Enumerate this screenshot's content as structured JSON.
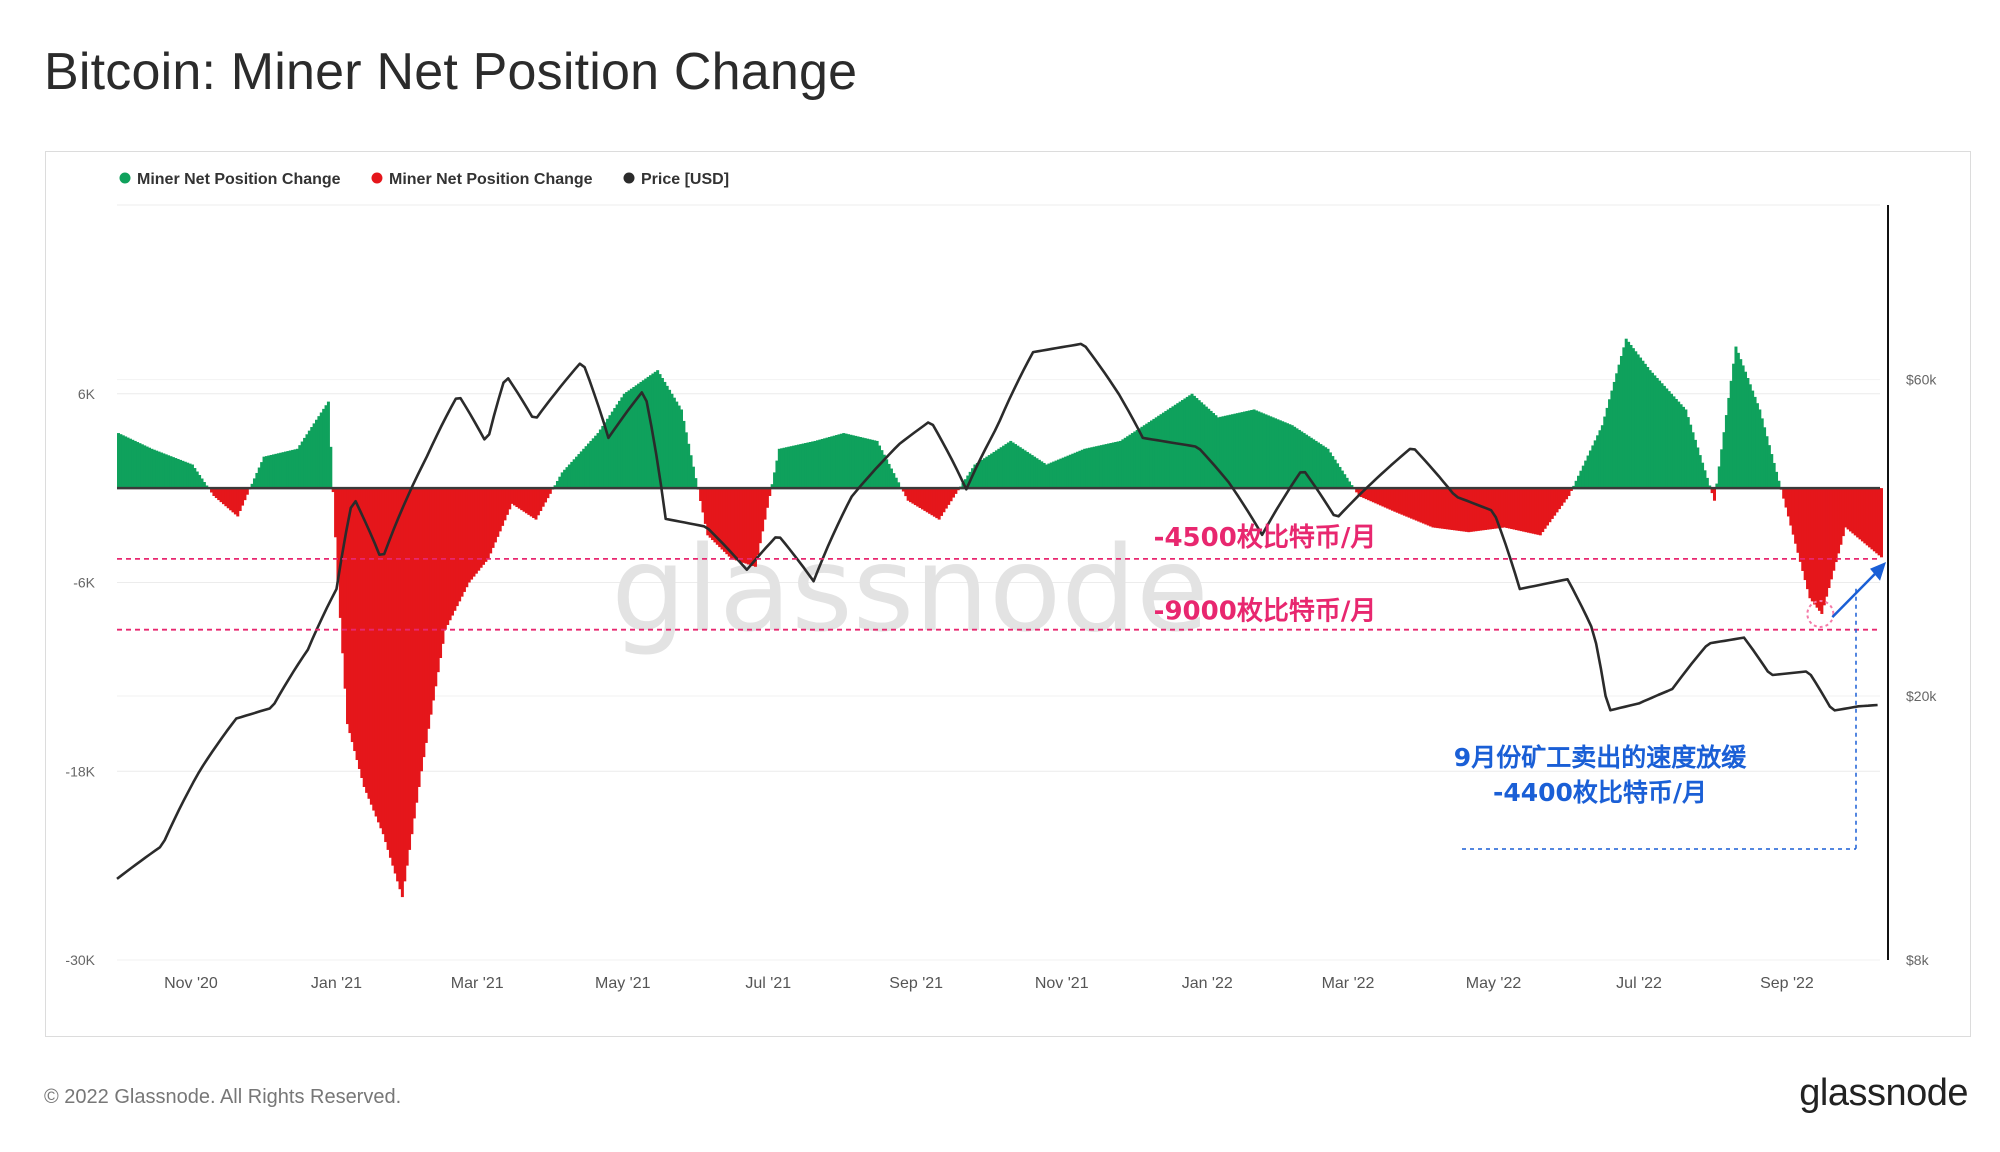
{
  "header": {
    "title": "Bitcoin: Miner Net Position Change"
  },
  "footer": {
    "copyright": "© 2022 Glassnode. All Rights Reserved.",
    "logo": "glassnode"
  },
  "watermark": "glassnode",
  "colors": {
    "positive": "#0fa15c",
    "negative": "#e5161b",
    "price": "#2b2b2b",
    "threshold": "#e8276f",
    "annotation": "#1a5fd6"
  },
  "chart_data": {
    "type": "bar",
    "legend": [
      {
        "label": "Miner Net Position Change",
        "color": "#0fa15c"
      },
      {
        "label": "Miner Net Position Change",
        "color": "#e5161b"
      },
      {
        "label": "Price [USD]",
        "color": "#2b2b2b"
      }
    ],
    "legend_position": "top-left",
    "x_ticks": [
      "Nov '20",
      "Jan '21",
      "Mar '21",
      "May '21",
      "Jul '21",
      "Sep '21",
      "Nov '21",
      "Jan '22",
      "Mar '22",
      "May '22",
      "Jul '22",
      "Sep '22"
    ],
    "y_left_ticks": [
      {
        "value": 6000,
        "label": "6K"
      },
      {
        "value": -6000,
        "label": "-6K"
      },
      {
        "value": -18000,
        "label": "-18K"
      },
      {
        "value": -30000,
        "label": "-30K"
      }
    ],
    "y_right_ticks": [
      {
        "value": 60000,
        "label": "$60k"
      },
      {
        "value": 20000,
        "label": "$20k"
      },
      {
        "value": 8000,
        "label": "$8k"
      }
    ],
    "y_left_range": [
      -30000,
      18000
    ],
    "y_right_scale": "log",
    "y_right_range": [
      8000,
      110000
    ],
    "grid": true,
    "date_range": [
      "2020-10-01",
      "2022-10-10"
    ],
    "net_position_series": [
      [
        "2020-10-01",
        3500
      ],
      [
        "2020-10-15",
        2500
      ],
      [
        "2020-11-01",
        1500
      ],
      [
        "2020-11-10",
        -500
      ],
      [
        "2020-11-20",
        -1800
      ],
      [
        "2020-12-01",
        2000
      ],
      [
        "2020-12-15",
        2500
      ],
      [
        "2020-12-28",
        5500
      ],
      [
        "2021-01-01",
        -6000
      ],
      [
        "2021-01-05",
        -15000
      ],
      [
        "2021-01-12",
        -19000
      ],
      [
        "2021-01-20",
        -22000
      ],
      [
        "2021-01-28",
        -26000
      ],
      [
        "2021-02-05",
        -18000
      ],
      [
        "2021-02-15",
        -9000
      ],
      [
        "2021-02-25",
        -6000
      ],
      [
        "2021-03-05",
        -4500
      ],
      [
        "2021-03-15",
        -1000
      ],
      [
        "2021-03-25",
        -2000
      ],
      [
        "2021-04-05",
        1000
      ],
      [
        "2021-04-20",
        3500
      ],
      [
        "2021-05-01",
        6000
      ],
      [
        "2021-05-15",
        7500
      ],
      [
        "2021-05-25",
        5000
      ],
      [
        "2021-06-05",
        -3000
      ],
      [
        "2021-06-15",
        -4500
      ],
      [
        "2021-06-25",
        -5000
      ],
      [
        "2021-07-05",
        2500
      ],
      [
        "2021-07-20",
        3000
      ],
      [
        "2021-08-01",
        3500
      ],
      [
        "2021-08-15",
        3000
      ],
      [
        "2021-08-28",
        -800
      ],
      [
        "2021-09-10",
        -2000
      ],
      [
        "2021-09-25",
        1500
      ],
      [
        "2021-10-10",
        3000
      ],
      [
        "2021-10-25",
        1500
      ],
      [
        "2021-11-10",
        2500
      ],
      [
        "2021-11-25",
        3000
      ],
      [
        "2021-12-10",
        4500
      ],
      [
        "2021-12-25",
        6000
      ],
      [
        "2022-01-05",
        4500
      ],
      [
        "2022-01-20",
        5000
      ],
      [
        "2022-02-05",
        4000
      ],
      [
        "2022-02-20",
        2500
      ],
      [
        "2022-03-05",
        -500
      ],
      [
        "2022-03-20",
        -1500
      ],
      [
        "2022-04-05",
        -2500
      ],
      [
        "2022-04-20",
        -2800
      ],
      [
        "2022-05-05",
        -2500
      ],
      [
        "2022-05-20",
        -3000
      ],
      [
        "2022-06-01",
        -500
      ],
      [
        "2022-06-15",
        4000
      ],
      [
        "2022-06-25",
        9500
      ],
      [
        "2022-07-05",
        7500
      ],
      [
        "2022-07-20",
        5000
      ],
      [
        "2022-08-01",
        -800
      ],
      [
        "2022-08-10",
        9000
      ],
      [
        "2022-08-20",
        5000
      ],
      [
        "2022-09-01",
        -1800
      ],
      [
        "2022-09-10",
        -7000
      ],
      [
        "2022-09-15",
        -8000
      ],
      [
        "2022-09-25",
        -2500
      ],
      [
        "2022-10-10",
        -4400
      ]
    ],
    "price_series": [
      [
        "2020-10-01",
        10600
      ],
      [
        "2020-10-20",
        11900
      ],
      [
        "2020-11-05",
        15500
      ],
      [
        "2020-11-20",
        18500
      ],
      [
        "2020-12-05",
        19200
      ],
      [
        "2020-12-20",
        23500
      ],
      [
        "2021-01-01",
        29000
      ],
      [
        "2021-01-08",
        40000
      ],
      [
        "2021-01-20",
        32000
      ],
      [
        "2021-02-08",
        46000
      ],
      [
        "2021-02-21",
        57000
      ],
      [
        "2021-03-05",
        48000
      ],
      [
        "2021-03-13",
        61000
      ],
      [
        "2021-03-25",
        52000
      ],
      [
        "2021-04-14",
        64000
      ],
      [
        "2021-04-25",
        49000
      ],
      [
        "2021-05-10",
        58000
      ],
      [
        "2021-05-19",
        37000
      ],
      [
        "2021-06-05",
        36000
      ],
      [
        "2021-06-22",
        31000
      ],
      [
        "2021-07-05",
        35000
      ],
      [
        "2021-07-20",
        29800
      ],
      [
        "2021-08-05",
        40000
      ],
      [
        "2021-08-25",
        48000
      ],
      [
        "2021-09-07",
        52000
      ],
      [
        "2021-09-22",
        41000
      ],
      [
        "2021-10-05",
        51000
      ],
      [
        "2021-10-20",
        66000
      ],
      [
        "2021-11-10",
        68000
      ],
      [
        "2021-11-25",
        57000
      ],
      [
        "2021-12-05",
        49000
      ],
      [
        "2021-12-28",
        47500
      ],
      [
        "2022-01-10",
        42000
      ],
      [
        "2022-01-24",
        35000
      ],
      [
        "2022-02-10",
        44000
      ],
      [
        "2022-02-24",
        37000
      ],
      [
        "2022-03-28",
        47500
      ],
      [
        "2022-04-15",
        40000
      ],
      [
        "2022-05-01",
        38000
      ],
      [
        "2022-05-12",
        29000
      ],
      [
        "2022-06-01",
        30000
      ],
      [
        "2022-06-12",
        25000
      ],
      [
        "2022-06-18",
        19000
      ],
      [
        "2022-07-01",
        19500
      ],
      [
        "2022-07-15",
        20500
      ],
      [
        "2022-07-30",
        24000
      ],
      [
        "2022-08-14",
        24500
      ],
      [
        "2022-08-25",
        21500
      ],
      [
        "2022-09-10",
        21800
      ],
      [
        "2022-09-20",
        19000
      ],
      [
        "2022-10-01",
        19300
      ],
      [
        "2022-10-10",
        19400
      ]
    ],
    "annotations": {
      "line_4500": {
        "value": -4500,
        "label": "-4500枚比特币/月"
      },
      "line_9000": {
        "value": -9000,
        "label": "-9000枚比特币/月"
      },
      "note_line1": "9月份矿工卖出的速度放缓",
      "note_line2": "-4400枚比特币/月"
    }
  }
}
